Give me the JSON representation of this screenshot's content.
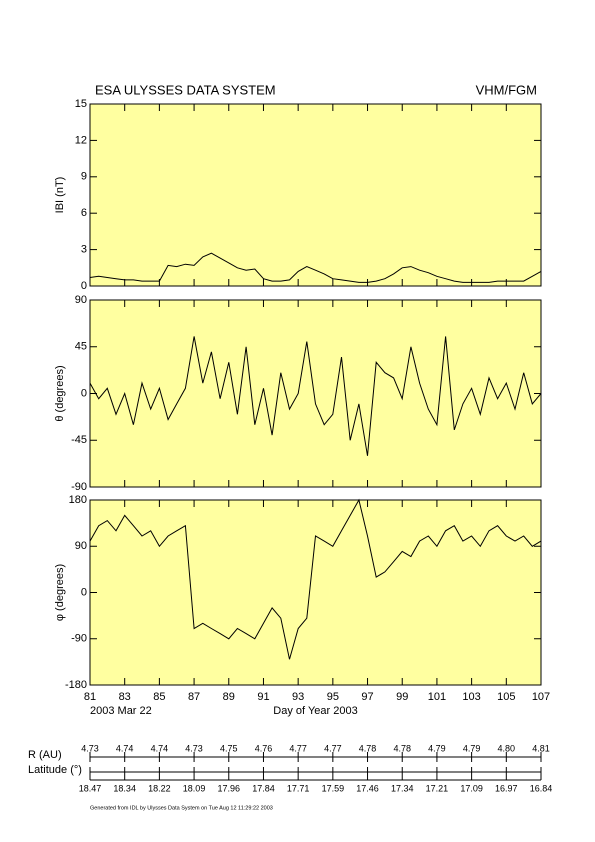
{
  "header": {
    "title": "ESA ULYSSES DATA SYSTEM",
    "instrument": "VHM/FGM"
  },
  "chart_data": [
    {
      "type": "line",
      "ylabel": "IBI (nT)",
      "color": "#000000",
      "xlim": [
        81,
        107
      ],
      "xticks": [
        81,
        83,
        85,
        87,
        89,
        91,
        93,
        95,
        97,
        99,
        101,
        103,
        105,
        107
      ],
      "ylim": [
        0,
        15
      ],
      "yticks": [
        0,
        3,
        6,
        9,
        12,
        15
      ],
      "x": [
        81,
        81.5,
        82,
        82.5,
        83,
        83.5,
        84,
        84.5,
        85,
        85.5,
        86,
        86.5,
        87,
        87.5,
        88,
        88.5,
        89,
        89.5,
        90,
        90.5,
        91,
        91.5,
        92,
        92.5,
        93,
        93.5,
        94,
        94.5,
        95,
        95.5,
        96,
        96.5,
        97,
        97.5,
        98,
        98.5,
        99,
        99.5,
        100,
        100.5,
        101,
        101.5,
        102,
        102.5,
        103,
        103.5,
        104,
        104.5,
        105,
        105.5,
        106,
        106.5,
        107
      ],
      "values": [
        0.7,
        0.8,
        0.7,
        0.6,
        0.5,
        0.5,
        0.4,
        0.4,
        0.4,
        1.7,
        1.6,
        1.8,
        1.7,
        2.4,
        2.7,
        2.3,
        1.9,
        1.5,
        1.3,
        1.4,
        0.6,
        0.4,
        0.4,
        0.5,
        1.2,
        1.6,
        1.3,
        1.0,
        0.6,
        0.5,
        0.4,
        0.3,
        0.3,
        0.4,
        0.6,
        1.0,
        1.5,
        1.6,
        1.3,
        1.1,
        0.8,
        0.6,
        0.4,
        0.3,
        0.3,
        0.3,
        0.3,
        0.4,
        0.4,
        0.4,
        0.4,
        0.8,
        1.2
      ]
    },
    {
      "type": "line",
      "ylabel": "θ (degrees)",
      "color": "#000000",
      "xlim": [
        81,
        107
      ],
      "xticks": [
        81,
        83,
        85,
        87,
        89,
        91,
        93,
        95,
        97,
        99,
        101,
        103,
        105,
        107
      ],
      "ylim": [
        -90,
        90
      ],
      "yticks": [
        -90,
        -45,
        0,
        45,
        90
      ],
      "x": [
        81,
        81.5,
        82,
        82.5,
        83,
        83.5,
        84,
        84.5,
        85,
        85.5,
        86,
        86.5,
        87,
        87.5,
        88,
        88.5,
        89,
        89.5,
        90,
        90.5,
        91,
        91.5,
        92,
        92.5,
        93,
        93.5,
        94,
        94.5,
        95,
        95.5,
        96,
        96.5,
        97,
        97.5,
        98,
        98.5,
        99,
        99.5,
        100,
        100.5,
        101,
        101.5,
        102,
        102.5,
        103,
        103.5,
        104,
        104.5,
        105,
        105.5,
        106,
        106.5,
        107
      ],
      "values": [
        10,
        -5,
        5,
        -20,
        0,
        -30,
        10,
        -15,
        5,
        -25,
        -10,
        5,
        55,
        10,
        40,
        -5,
        30,
        -20,
        45,
        -30,
        5,
        -40,
        20,
        -15,
        0,
        50,
        -10,
        -30,
        -20,
        35,
        -45,
        -10,
        -60,
        30,
        20,
        15,
        -5,
        45,
        10,
        -15,
        -30,
        55,
        -35,
        -10,
        5,
        -20,
        15,
        -5,
        10,
        -15,
        20,
        -10,
        0
      ]
    },
    {
      "type": "line",
      "ylabel": "φ (degrees)",
      "xlabel": "Day of Year 2003",
      "date_label": "2003 Mar 22",
      "color": "#000000",
      "xlim": [
        81,
        107
      ],
      "xticks": [
        81,
        83,
        85,
        87,
        89,
        91,
        93,
        95,
        97,
        99,
        101,
        103,
        105,
        107
      ],
      "ylim": [
        -180,
        180
      ],
      "yticks": [
        -180,
        -90,
        0,
        90,
        180
      ],
      "x": [
        81,
        81.5,
        82,
        82.5,
        83,
        83.5,
        84,
        84.5,
        85,
        85.5,
        86,
        86.5,
        87,
        87.5,
        88,
        88.5,
        89,
        89.5,
        90,
        90.5,
        91,
        91.5,
        92,
        92.5,
        93,
        93.5,
        94,
        94.5,
        95,
        95.5,
        96,
        96.5,
        97,
        97.5,
        98,
        98.5,
        99,
        99.5,
        100,
        100.5,
        101,
        101.5,
        102,
        102.5,
        103,
        103.5,
        104,
        104.5,
        105,
        105.5,
        106,
        106.5,
        107
      ],
      "values": [
        100,
        130,
        140,
        120,
        150,
        130,
        110,
        120,
        90,
        110,
        120,
        130,
        -70,
        -60,
        -70,
        -80,
        -90,
        -70,
        -80,
        -90,
        -60,
        -30,
        -50,
        -130,
        -70,
        -50,
        110,
        100,
        90,
        120,
        150,
        180,
        110,
        30,
        40,
        60,
        80,
        70,
        100,
        110,
        90,
        120,
        130,
        100,
        110,
        90,
        120,
        130,
        110,
        100,
        110,
        90,
        100
      ]
    }
  ],
  "ephemeris": [
    {
      "label": "R (AU)",
      "values": [
        "4.73",
        "4.74",
        "4.74",
        "4.73",
        "4.75",
        "4.76",
        "4.77",
        "4.77",
        "4.78",
        "4.78",
        "4.79",
        "4.79",
        "4.80",
        "4.81"
      ]
    },
    {
      "label": "Latitude (°)",
      "values": [
        "18.47",
        "18.34",
        "18.22",
        "18.09",
        "17.96",
        "17.84",
        "17.71",
        "17.59",
        "17.46",
        "17.34",
        "17.21",
        "17.09",
        "16.97",
        "16.84"
      ]
    }
  ],
  "footer": "Generated from IDL by Ulysses Data System on Tue Aug 12 11:29:22 2003"
}
